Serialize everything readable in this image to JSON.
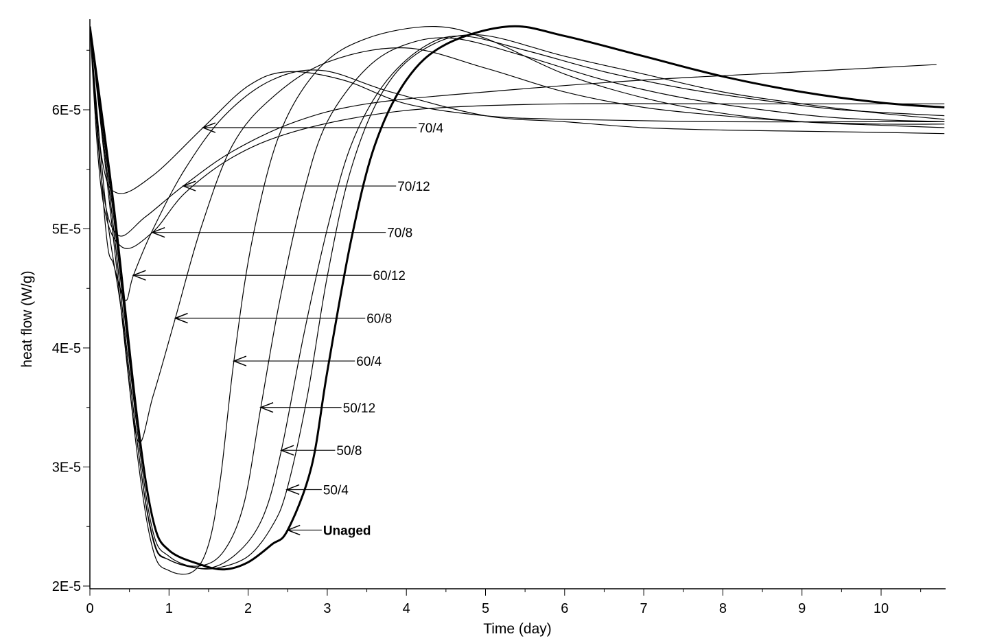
{
  "chart_data": {
    "type": "line",
    "title": "",
    "xlabel": "Time (day)",
    "ylabel": "heat flow (W/g)",
    "xlim": [
      0,
      10.8
    ],
    "ylim": [
      2e-05,
      6.72e-05
    ],
    "x_ticks": [
      0,
      1,
      2,
      3,
      4,
      5,
      6,
      7,
      8,
      9,
      10
    ],
    "x_tick_labels": [
      "0",
      "1",
      "2",
      "3",
      "4",
      "5",
      "6",
      "7",
      "8",
      "9",
      "10"
    ],
    "y_ticks": [
      2e-05,
      3e-05,
      4e-05,
      5e-05,
      6e-05
    ],
    "y_tick_labels": [
      "2E-5",
      "3E-5",
      "4E-5",
      "5E-5",
      "6E-5"
    ],
    "grid": false,
    "legend": "none (inline arrow annotations)",
    "line_color": "#000000",
    "series": [
      {
        "name": "Unaged",
        "bold": true,
        "points": [
          [
            0,
            6.7e-05
          ],
          [
            0.3,
            5.2e-05
          ],
          [
            0.6,
            3.4e-05
          ],
          [
            0.8,
            2.55e-05
          ],
          [
            1.0,
            2.3e-05
          ],
          [
            1.4,
            2.18e-05
          ],
          [
            1.7,
            2.14e-05
          ],
          [
            2.0,
            2.2e-05
          ],
          [
            2.3,
            2.35e-05
          ],
          [
            2.5,
            2.47e-05
          ],
          [
            2.8,
            3e-05
          ],
          [
            3.0,
            3.8e-05
          ],
          [
            3.3,
            4.9e-05
          ],
          [
            3.6,
            5.7e-05
          ],
          [
            4.0,
            6.25e-05
          ],
          [
            4.5,
            6.55e-05
          ],
          [
            5.3,
            6.7e-05
          ],
          [
            6,
            6.62e-05
          ],
          [
            7,
            6.45e-05
          ],
          [
            8,
            6.28e-05
          ],
          [
            9,
            6.15e-05
          ],
          [
            10,
            6.06e-05
          ],
          [
            10.8,
            6.02e-05
          ]
        ]
      },
      {
        "name": "50/4",
        "points": [
          [
            0,
            6.7e-05
          ],
          [
            0.3,
            5.1e-05
          ],
          [
            0.6,
            3.3e-05
          ],
          [
            0.8,
            2.45e-05
          ],
          [
            1.0,
            2.25e-05
          ],
          [
            1.3,
            2.16e-05
          ],
          [
            1.6,
            2.15e-05
          ],
          [
            2.0,
            2.25e-05
          ],
          [
            2.3,
            2.5e-05
          ],
          [
            2.49,
            2.81e-05
          ],
          [
            2.75,
            3.6e-05
          ],
          [
            3.0,
            4.6e-05
          ],
          [
            3.3,
            5.5e-05
          ],
          [
            3.7,
            6.15e-05
          ],
          [
            4.2,
            6.5e-05
          ],
          [
            4.9,
            6.63e-05
          ],
          [
            6,
            6.45e-05
          ],
          [
            7,
            6.3e-05
          ],
          [
            8,
            6.15e-05
          ],
          [
            9,
            6.05e-05
          ],
          [
            10,
            5.97e-05
          ],
          [
            10.8,
            5.92e-05
          ]
        ]
      },
      {
        "name": "50/8",
        "points": [
          [
            0,
            6.7e-05
          ],
          [
            0.3,
            5e-05
          ],
          [
            0.6,
            3.2e-05
          ],
          [
            0.8,
            2.4e-05
          ],
          [
            1.0,
            2.22e-05
          ],
          [
            1.5,
            2.15e-05
          ],
          [
            1.9,
            2.3e-05
          ],
          [
            2.2,
            2.6e-05
          ],
          [
            2.42,
            3.14e-05
          ],
          [
            2.7,
            4.1e-05
          ],
          [
            3.0,
            5e-05
          ],
          [
            3.3,
            5.7e-05
          ],
          [
            3.7,
            6.2e-05
          ],
          [
            4.2,
            6.52e-05
          ],
          [
            4.7,
            6.62e-05
          ],
          [
            5.5,
            6.5e-05
          ],
          [
            6.5,
            6.32e-05
          ],
          [
            7.5,
            6.18e-05
          ],
          [
            8.5,
            6.08e-05
          ],
          [
            9.5,
            6e-05
          ],
          [
            10.8,
            5.95e-05
          ]
        ]
      },
      {
        "name": "50/12",
        "points": [
          [
            0,
            6.7e-05
          ],
          [
            0.3,
            5e-05
          ],
          [
            0.6,
            3.2e-05
          ],
          [
            0.8,
            2.38e-05
          ],
          [
            1.0,
            2.22e-05
          ],
          [
            1.4,
            2.17e-05
          ],
          [
            1.7,
            2.3e-05
          ],
          [
            1.95,
            2.7e-05
          ],
          [
            2.16,
            3.5e-05
          ],
          [
            2.4,
            4.4e-05
          ],
          [
            2.7,
            5.3e-05
          ],
          [
            3.0,
            5.9e-05
          ],
          [
            3.5,
            6.35e-05
          ],
          [
            4.0,
            6.55e-05
          ],
          [
            4.6,
            6.6e-05
          ],
          [
            5.5,
            6.45e-05
          ],
          [
            6.5,
            6.25e-05
          ],
          [
            7.5,
            6.1e-05
          ],
          [
            8.5,
            6e-05
          ],
          [
            9.5,
            5.93e-05
          ],
          [
            10.8,
            5.9e-05
          ]
        ]
      },
      {
        "name": "60/4",
        "points": [
          [
            0,
            6.7e-05
          ],
          [
            0.3,
            4.9e-05
          ],
          [
            0.6,
            3.1e-05
          ],
          [
            0.8,
            2.3e-05
          ],
          [
            1.0,
            2.13e-05
          ],
          [
            1.3,
            2.12e-05
          ],
          [
            1.5,
            2.35e-05
          ],
          [
            1.65,
            2.9e-05
          ],
          [
            1.82,
            3.89e-05
          ],
          [
            2.05,
            4.9e-05
          ],
          [
            2.4,
            5.8e-05
          ],
          [
            2.9,
            6.35e-05
          ],
          [
            3.5,
            6.6e-05
          ],
          [
            4.33,
            6.7e-05
          ],
          [
            5.0,
            6.6e-05
          ],
          [
            6,
            6.3e-05
          ],
          [
            7,
            6.1e-05
          ],
          [
            8,
            5.97e-05
          ],
          [
            9,
            5.9e-05
          ],
          [
            10,
            5.87e-05
          ],
          [
            10.8,
            5.85e-05
          ]
        ]
      },
      {
        "name": "60/8",
        "points": [
          [
            0,
            6.7e-05
          ],
          [
            0.2,
            5.2e-05
          ],
          [
            0.4,
            4.3e-05
          ],
          [
            0.6,
            3.23e-05
          ],
          [
            0.8,
            3.6e-05
          ],
          [
            1.08,
            4.25e-05
          ],
          [
            1.4,
            5e-05
          ],
          [
            1.8,
            5.7e-05
          ],
          [
            2.3,
            6.1e-05
          ],
          [
            3.0,
            6.4e-05
          ],
          [
            3.98,
            6.52e-05
          ],
          [
            5.0,
            6.35e-05
          ],
          [
            6,
            6.15e-05
          ],
          [
            7,
            6.02e-05
          ],
          [
            8,
            5.95e-05
          ],
          [
            9,
            5.9e-05
          ],
          [
            10,
            5.88e-05
          ],
          [
            10.8,
            5.88e-05
          ]
        ]
      },
      {
        "name": "60/12",
        "points": [
          [
            0,
            6.7e-05
          ],
          [
            0.2,
            5e-05
          ],
          [
            0.3,
            4.7e-05
          ],
          [
            0.45,
            4.4e-05
          ],
          [
            0.55,
            4.61e-05
          ],
          [
            0.8,
            5e-05
          ],
          [
            1.2,
            5.5e-05
          ],
          [
            1.7,
            5.95e-05
          ],
          [
            2.3,
            6.25e-05
          ],
          [
            2.94,
            6.33e-05
          ],
          [
            3.8,
            6.15e-05
          ],
          [
            5,
            5.95e-05
          ],
          [
            6,
            5.9e-05
          ],
          [
            7,
            5.85e-05
          ],
          [
            8,
            5.83e-05
          ],
          [
            9,
            5.82e-05
          ],
          [
            10,
            5.81e-05
          ],
          [
            10.8,
            5.8e-05
          ]
        ]
      },
      {
        "name": "70/8",
        "points": [
          [
            0,
            6.7e-05
          ],
          [
            0.15,
            5.3e-05
          ],
          [
            0.4,
            4.85e-05
          ],
          [
            0.79,
            4.97e-05
          ],
          [
            1.2,
            5.3e-05
          ],
          [
            1.8,
            5.6e-05
          ],
          [
            2.5,
            5.8e-05
          ],
          [
            3.5,
            5.95e-05
          ],
          [
            4.5,
            6.02e-05
          ],
          [
            6,
            6.05e-05
          ],
          [
            8,
            6.05e-05
          ],
          [
            10,
            6.05e-05
          ],
          [
            10.8,
            6.05e-05
          ]
        ]
      },
      {
        "name": "70/12",
        "points": [
          [
            0,
            6.7e-05
          ],
          [
            0.15,
            5.4e-05
          ],
          [
            0.35,
            4.95e-05
          ],
          [
            0.7,
            5.1e-05
          ],
          [
            1.18,
            5.36e-05
          ],
          [
            1.8,
            5.65e-05
          ],
          [
            2.6,
            5.9e-05
          ],
          [
            3.5,
            6.05e-05
          ],
          [
            5,
            6.15e-05
          ],
          [
            7,
            6.25e-05
          ],
          [
            9,
            6.32e-05
          ],
          [
            10.7,
            6.38e-05
          ]
        ]
      },
      {
        "name": "70/4",
        "points": [
          [
            0,
            6.7e-05
          ],
          [
            0.15,
            5.6e-05
          ],
          [
            0.35,
            5.3e-05
          ],
          [
            0.8,
            5.45e-05
          ],
          [
            1.43,
            5.85e-05
          ],
          [
            2.0,
            6.2e-05
          ],
          [
            2.5,
            6.32e-05
          ],
          [
            3.2,
            6.25e-05
          ],
          [
            4,
            6.05e-05
          ],
          [
            5,
            5.95e-05
          ],
          [
            6,
            5.92e-05
          ],
          [
            8,
            5.9e-05
          ],
          [
            10,
            5.9e-05
          ],
          [
            10.8,
            5.9e-05
          ]
        ]
      }
    ],
    "annotations": [
      {
        "text": "70/4",
        "bold": false,
        "tip": [
          1.43,
          5.85e-05
        ],
        "label_at": [
          4.13,
          5.85e-05
        ]
      },
      {
        "text": "70/12",
        "bold": false,
        "tip": [
          1.18,
          5.36e-05
        ],
        "label_at": [
          3.87,
          5.36e-05
        ]
      },
      {
        "text": "70/8",
        "bold": false,
        "tip": [
          0.79,
          4.97e-05
        ],
        "label_at": [
          3.74,
          4.97e-05
        ]
      },
      {
        "text": "60/12",
        "bold": false,
        "tip": [
          0.55,
          4.61e-05
        ],
        "label_at": [
          3.56,
          4.61e-05
        ]
      },
      {
        "text": "60/8",
        "bold": false,
        "tip": [
          1.08,
          4.25e-05
        ],
        "label_at": [
          3.48,
          4.25e-05
        ]
      },
      {
        "text": "60/4",
        "bold": false,
        "tip": [
          1.82,
          3.89e-05
        ],
        "label_at": [
          3.35,
          3.89e-05
        ]
      },
      {
        "text": "50/12",
        "bold": false,
        "tip": [
          2.16,
          3.5e-05
        ],
        "label_at": [
          3.18,
          3.5e-05
        ]
      },
      {
        "text": "50/8",
        "bold": false,
        "tip": [
          2.42,
          3.14e-05
        ],
        "label_at": [
          3.1,
          3.14e-05
        ]
      },
      {
        "text": "50/4",
        "bold": false,
        "tip": [
          2.49,
          2.81e-05
        ],
        "label_at": [
          2.93,
          2.81e-05
        ]
      },
      {
        "text": "Unaged",
        "bold": true,
        "tip": [
          2.5,
          2.47e-05
        ],
        "label_at": [
          2.93,
          2.47e-05
        ]
      }
    ]
  }
}
